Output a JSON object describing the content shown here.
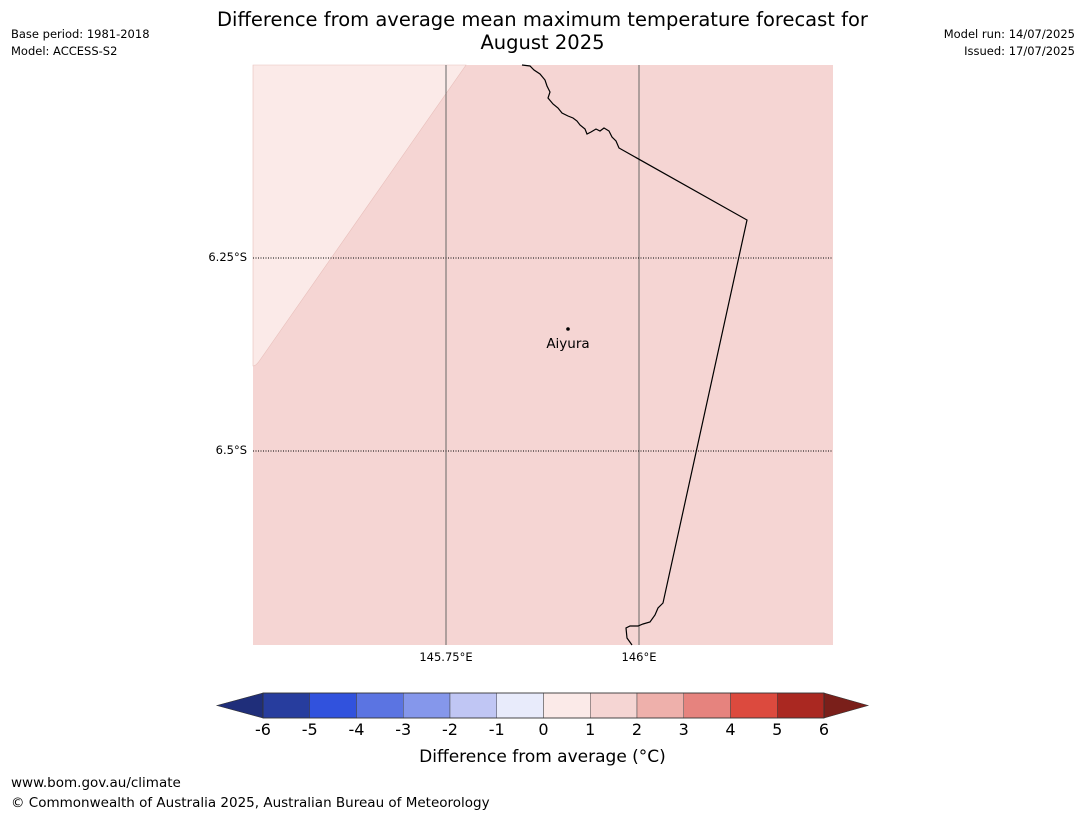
{
  "header": {
    "title_line1": "Difference from average mean maximum temperature forecast for",
    "title_line2": "August 2025",
    "base_period": "Base period: 1981-2018",
    "model": "Model: ACCESS-S2",
    "model_run": "Model run: 14/07/2025",
    "issued": "Issued: 17/07/2025"
  },
  "map": {
    "lat_labels": [
      "6.25°S",
      "6.5°S"
    ],
    "lon_labels": [
      "145.75°E",
      "146°E"
    ],
    "place": {
      "name": "Aiyura"
    },
    "fill_colors": {
      "main": "#f5d5d3",
      "lighter": "#fbeae8"
    }
  },
  "colorbar": {
    "label": "Difference from average ($^\\circ$C)",
    "label_display": "Difference from average (°C)",
    "ticks": [
      "-6",
      "-5",
      "-4",
      "-3",
      "-2",
      "-1",
      "0",
      "1",
      "2",
      "3",
      "4",
      "5",
      "6"
    ],
    "colors": [
      "#273d9e",
      "#3152dd",
      "#5b74e2",
      "#8597eb",
      "#c0c6f4",
      "#e8ebfb",
      "#fbeae8",
      "#f5d5d3",
      "#eeb0ab",
      "#e6837e",
      "#dc4a3e",
      "#aa2821"
    ],
    "under_color": "#1f2e7a",
    "over_color": "#7a1f1a"
  },
  "footer": {
    "url": "www.bom.gov.au/climate",
    "copyright": "© Commonwealth of Australia 2025, Australian Bureau of Meteorology"
  }
}
